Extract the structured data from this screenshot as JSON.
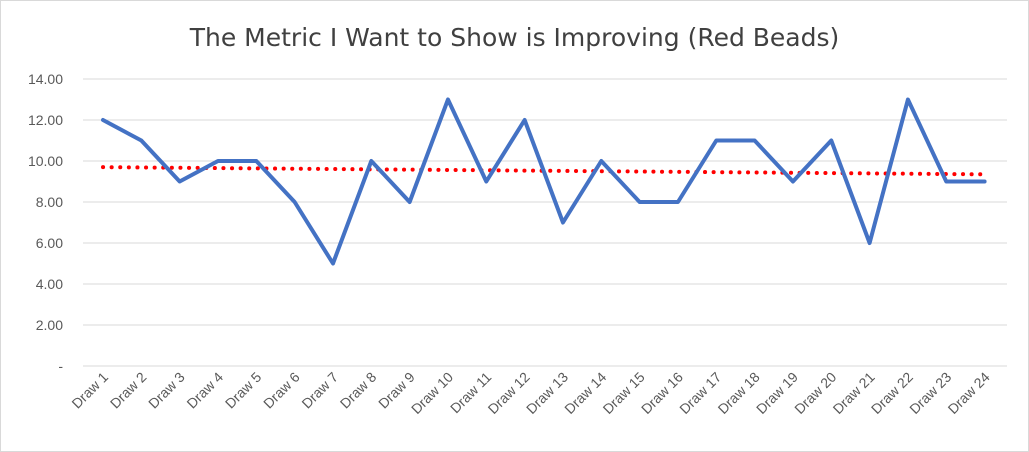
{
  "chart_data": {
    "type": "line",
    "title": "The Metric I Want to Show is Improving (Red Beads)",
    "xlabel": "",
    "ylabel": "",
    "categories": [
      "Draw 1",
      "Draw 2",
      "Draw 3",
      "Draw 4",
      "Draw 5",
      "Draw 6",
      "Draw 7",
      "Draw 8",
      "Draw 9",
      "Draw 10",
      "Draw 11",
      "Draw 12",
      "Draw 13",
      "Draw 14",
      "Draw 15",
      "Draw 16",
      "Draw 17",
      "Draw 18",
      "Draw 19",
      "Draw 20",
      "Draw 21",
      "Draw 22",
      "Draw 23",
      "Draw 24"
    ],
    "series": [
      {
        "values": [
          12,
          11,
          9,
          10,
          10,
          8,
          5,
          10,
          8,
          13,
          9,
          12,
          7,
          10,
          8,
          8,
          11,
          11,
          9,
          11,
          6,
          13,
          9,
          9
        ],
        "color": "#4472c4",
        "style": "solid"
      }
    ],
    "trendline": {
      "type": "linear",
      "color": "#ff0000",
      "style": "dotted",
      "start": 9.7,
      "end": 9.35
    },
    "ylim": [
      0,
      14
    ],
    "yticks": [
      0,
      2,
      4,
      6,
      8,
      10,
      12,
      14
    ],
    "ytick_labels": [
      "-",
      "2.00",
      "4.00",
      "6.00",
      "8.00",
      "10.00",
      "12.00",
      "14.00"
    ],
    "grid": true,
    "legend": "none"
  }
}
